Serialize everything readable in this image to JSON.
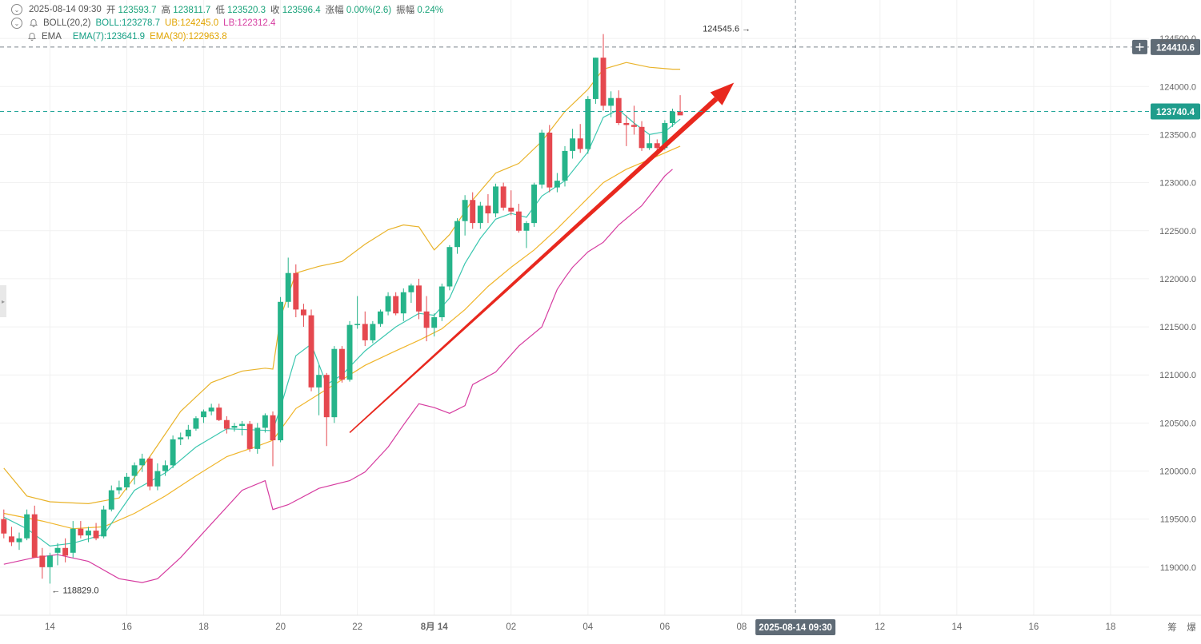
{
  "header": {
    "datetime": "2025-08-14 09:30",
    "open_label": "开",
    "open": "123593.7",
    "high_label": "高",
    "high": "123811.7",
    "low_label": "低",
    "low": "123520.3",
    "close_label": "收",
    "close": "123596.4",
    "change_label": "涨幅",
    "change": "0.00%(2.6)",
    "amp_label": "振幅",
    "amp": "0.24%",
    "boll_label": "BOLL(20,2)",
    "boll": "BOLL:123278.7",
    "ub": "UB:124245.0",
    "lb": "LB:122312.4",
    "ema_label": "EMA",
    "ema7": "EMA(7):123641.9",
    "ema30": "EMA(30):122963.8"
  },
  "colors": {
    "up": "#26b48a",
    "down": "#e5484f",
    "ub": "#e9b32a",
    "lb": "#d63ca0",
    "ema7": "#3cc7b0",
    "ema30": "#f0b52a",
    "arrow": "#e8281e",
    "grid": "#f1f1f1",
    "axis_text": "#666666"
  },
  "chart_data": {
    "type": "candlestick",
    "yticks": [
      124500,
      124000,
      123500,
      123000,
      122500,
      122000,
      121500,
      121000,
      120500,
      120000,
      119500,
      119000
    ],
    "ytick_labels": [
      "124500.0",
      "124000.0",
      "123500.0",
      "123000.0",
      "122500.0",
      "122000.0",
      "121500.0",
      "121000.0",
      "120500.0",
      "120000.0",
      "119500.0",
      "119000.0"
    ],
    "ylim": [
      118500,
      124900
    ],
    "xticks": [
      "14",
      "16",
      "18",
      "20",
      "22",
      "8月 14",
      "02",
      "04",
      "06",
      "08",
      "12",
      "14",
      "16",
      "18"
    ],
    "x_tick_index": [
      5,
      15,
      25,
      35,
      45,
      55,
      65,
      75,
      85,
      95,
      113,
      123,
      133,
      143
    ],
    "x_range": [
      -1.5,
      148
    ],
    "price_tags": [
      {
        "value": 124410.6,
        "label": "124410.6",
        "style": "dark"
      },
      {
        "value": 123740.4,
        "label": "123740.4",
        "style": "teal"
      }
    ],
    "crosshair_index": 102,
    "crosshair_label": "2025-08-14 09:30",
    "right_axis_chars": [
      "筹",
      "爆"
    ],
    "max_annotation": {
      "index": 97,
      "value": 124545.6,
      "label": "124545.6"
    },
    "min_annotation": {
      "index": 5,
      "value": 118829.0,
      "label": "118829.0"
    },
    "trend_arrow": {
      "from": [
        44,
        120400
      ],
      "to": [
        94,
        124040
      ]
    },
    "candles": [
      [
        -1,
        119500,
        119600,
        119300,
        119350
      ],
      [
        0,
        119320,
        119420,
        119220,
        119260
      ],
      [
        1,
        119260,
        119360,
        119180,
        119300
      ],
      [
        2,
        119300,
        119600,
        119280,
        119550
      ],
      [
        3,
        119550,
        119640,
        119100,
        119100
      ],
      [
        4,
        119120,
        119200,
        118880,
        119000
      ],
      [
        5,
        119000,
        119150,
        118829,
        119120
      ],
      [
        6,
        119150,
        119250,
        119020,
        119200
      ],
      [
        7,
        119200,
        119300,
        119050,
        119120
      ],
      [
        8,
        119150,
        119480,
        119100,
        119400
      ],
      [
        9,
        119400,
        119480,
        119300,
        119330
      ],
      [
        10,
        119330,
        119420,
        119260,
        119380
      ],
      [
        11,
        119380,
        119460,
        119280,
        119300
      ],
      [
        12,
        119320,
        119640,
        119300,
        119600
      ],
      [
        13,
        119600,
        119850,
        119580,
        119800
      ],
      [
        14,
        119800,
        119900,
        119760,
        119830
      ],
      [
        15,
        119830,
        119980,
        119800,
        119940
      ],
      [
        16,
        119950,
        120090,
        119860,
        120060
      ],
      [
        17,
        120060,
        120180,
        119990,
        120130
      ],
      [
        18,
        120130,
        120150,
        119800,
        119840
      ],
      [
        19,
        119840,
        120080,
        119800,
        120000
      ],
      [
        20,
        120000,
        120110,
        119950,
        120060
      ],
      [
        21,
        120060,
        120370,
        120030,
        120330
      ],
      [
        22,
        120330,
        120400,
        120270,
        120350
      ],
      [
        23,
        120360,
        120480,
        120330,
        120430
      ],
      [
        24,
        120440,
        120570,
        120420,
        120550
      ],
      [
        25,
        120560,
        120640,
        120500,
        120620
      ],
      [
        26,
        120620,
        120700,
        120580,
        120660
      ],
      [
        27,
        120660,
        120700,
        120520,
        120530
      ],
      [
        28,
        120530,
        120570,
        120390,
        120440
      ],
      [
        29,
        120450,
        120500,
        120410,
        120470
      ],
      [
        30,
        120470,
        120520,
        120370,
        120490
      ],
      [
        31,
        120490,
        120520,
        120200,
        120230
      ],
      [
        32,
        120230,
        120500,
        120180,
        120450
      ],
      [
        33,
        120450,
        120600,
        120400,
        120580
      ],
      [
        34,
        120580,
        120620,
        120050,
        120320
      ],
      [
        35,
        120320,
        121810,
        120300,
        121760
      ],
      [
        36,
        121760,
        122220,
        121700,
        122060
      ],
      [
        37,
        122060,
        122150,
        121600,
        121680
      ],
      [
        38,
        121680,
        121740,
        121500,
        121620
      ],
      [
        39,
        121620,
        121680,
        120830,
        120870
      ],
      [
        40,
        120870,
        121100,
        120580,
        121000
      ],
      [
        41,
        121000,
        121020,
        120260,
        120560
      ],
      [
        42,
        120560,
        121300,
        120500,
        121270
      ],
      [
        43,
        121270,
        121300,
        120920,
        120950
      ],
      [
        44,
        120950,
        121560,
        120930,
        121520
      ],
      [
        45,
        121520,
        121820,
        121480,
        121530
      ],
      [
        46,
        121530,
        121660,
        121300,
        121360
      ],
      [
        47,
        121360,
        121560,
        121330,
        121530
      ],
      [
        48,
        121530,
        121680,
        121500,
        121660
      ],
      [
        49,
        121660,
        121860,
        121620,
        121820
      ],
      [
        50,
        121820,
        121860,
        121620,
        121640
      ],
      [
        51,
        121640,
        121900,
        121560,
        121860
      ],
      [
        52,
        121860,
        121950,
        121750,
        121930
      ],
      [
        53,
        121930,
        122000,
        121580,
        121660
      ],
      [
        54,
        121660,
        121820,
        121350,
        121490
      ],
      [
        55,
        121490,
        121640,
        121400,
        121600
      ],
      [
        56,
        121600,
        121950,
        121560,
        121920
      ],
      [
        57,
        121920,
        122350,
        121880,
        122330
      ],
      [
        58,
        122330,
        122630,
        122260,
        122600
      ],
      [
        59,
        122600,
        122870,
        122450,
        122820
      ],
      [
        60,
        122820,
        122900,
        122520,
        122580
      ],
      [
        61,
        122580,
        122800,
        122520,
        122760
      ],
      [
        62,
        122760,
        122880,
        122580,
        122680
      ],
      [
        63,
        122680,
        122990,
        122640,
        122960
      ],
      [
        64,
        122960,
        123000,
        122710,
        122740
      ],
      [
        65,
        122740,
        122920,
        122660,
        122700
      ],
      [
        66,
        122700,
        122780,
        122480,
        122500
      ],
      [
        67,
        122500,
        122600,
        122320,
        122580
      ],
      [
        68,
        122580,
        123000,
        122540,
        122980
      ],
      [
        69,
        122980,
        123550,
        122940,
        123520
      ],
      [
        70,
        123520,
        123600,
        122900,
        122950
      ],
      [
        71,
        122950,
        123100,
        122900,
        123020
      ],
      [
        72,
        123020,
        123380,
        122960,
        123330
      ],
      [
        73,
        123330,
        123560,
        123250,
        123460
      ],
      [
        74,
        123460,
        123610,
        123310,
        123350
      ],
      [
        75,
        123350,
        123900,
        123300,
        123870
      ],
      [
        76,
        123870,
        124300,
        123820,
        124300
      ],
      [
        77,
        124300,
        124545.6,
        123750,
        123800
      ],
      [
        78,
        123800,
        123950,
        123680,
        123880
      ],
      [
        79,
        123880,
        123960,
        123600,
        123620
      ],
      [
        80,
        123620,
        123700,
        123380,
        123600
      ],
      [
        81,
        123600,
        123800,
        123500,
        123580
      ],
      [
        82,
        123580,
        123640,
        123330,
        123360
      ],
      [
        83,
        123360,
        123500,
        123340,
        123410
      ],
      [
        84,
        123410,
        123450,
        123280,
        123360
      ],
      [
        85,
        123360,
        123650,
        123340,
        123620
      ],
      [
        86,
        123620,
        123770,
        123580,
        123740
      ],
      [
        87,
        123740,
        123910,
        123720,
        123700
      ]
    ],
    "ema7": [
      [
        -1,
        119520
      ],
      [
        2,
        119400
      ],
      [
        5,
        119220
      ],
      [
        8,
        119250
      ],
      [
        12,
        119340
      ],
      [
        16,
        119800
      ],
      [
        20,
        119980
      ],
      [
        24,
        120250
      ],
      [
        28,
        120440
      ],
      [
        31,
        120430
      ],
      [
        34,
        120420
      ],
      [
        35,
        120660
      ],
      [
        37,
        121200
      ],
      [
        39,
        121320
      ],
      [
        41,
        120900
      ],
      [
        43,
        121000
      ],
      [
        46,
        121250
      ],
      [
        50,
        121500
      ],
      [
        53,
        121640
      ],
      [
        55,
        121620
      ],
      [
        57,
        121800
      ],
      [
        59,
        122160
      ],
      [
        61,
        122420
      ],
      [
        63,
        122620
      ],
      [
        65,
        122680
      ],
      [
        67,
        122640
      ],
      [
        69,
        122860
      ],
      [
        72,
        123020
      ],
      [
        75,
        123320
      ],
      [
        77,
        123680
      ],
      [
        79,
        123760
      ],
      [
        81,
        123620
      ],
      [
        83,
        123500
      ],
      [
        85,
        123530
      ],
      [
        87,
        123660
      ]
    ],
    "ema30": [
      [
        -1,
        119560
      ],
      [
        4,
        119480
      ],
      [
        8,
        119400
      ],
      [
        12,
        119420
      ],
      [
        16,
        119560
      ],
      [
        20,
        119740
      ],
      [
        24,
        119950
      ],
      [
        28,
        120150
      ],
      [
        32,
        120260
      ],
      [
        34,
        120320
      ],
      [
        37,
        120650
      ],
      [
        40,
        120800
      ],
      [
        43,
        120950
      ],
      [
        46,
        121100
      ],
      [
        50,
        121250
      ],
      [
        53,
        121360
      ],
      [
        56,
        121480
      ],
      [
        59,
        121680
      ],
      [
        62,
        121920
      ],
      [
        65,
        122120
      ],
      [
        68,
        122300
      ],
      [
        71,
        122520
      ],
      [
        74,
        122760
      ],
      [
        77,
        123000
      ],
      [
        80,
        123140
      ],
      [
        83,
        123240
      ],
      [
        87,
        123380
      ]
    ],
    "ub": [
      [
        -1,
        120030
      ],
      [
        2,
        119740
      ],
      [
        5,
        119680
      ],
      [
        10,
        119660
      ],
      [
        14,
        119720
      ],
      [
        18,
        120150
      ],
      [
        22,
        120620
      ],
      [
        26,
        120920
      ],
      [
        30,
        121040
      ],
      [
        33,
        121070
      ],
      [
        34,
        121060
      ],
      [
        35,
        121600
      ],
      [
        37,
        122060
      ],
      [
        40,
        122130
      ],
      [
        43,
        122180
      ],
      [
        46,
        122360
      ],
      [
        49,
        122510
      ],
      [
        51,
        122560
      ],
      [
        53,
        122540
      ],
      [
        55,
        122300
      ],
      [
        57,
        122460
      ],
      [
        60,
        122820
      ],
      [
        63,
        123100
      ],
      [
        66,
        123200
      ],
      [
        69,
        123430
      ],
      [
        72,
        123740
      ],
      [
        75,
        123970
      ],
      [
        77,
        124180
      ],
      [
        80,
        124250
      ],
      [
        83,
        124200
      ],
      [
        86,
        124180
      ],
      [
        87,
        124180
      ]
    ],
    "lb": [
      [
        -1,
        119030
      ],
      [
        3,
        119100
      ],
      [
        6,
        119130
      ],
      [
        10,
        119060
      ],
      [
        14,
        118880
      ],
      [
        17,
        118840
      ],
      [
        19,
        118880
      ],
      [
        22,
        119100
      ],
      [
        26,
        119450
      ],
      [
        30,
        119800
      ],
      [
        33,
        119900
      ],
      [
        34,
        119600
      ],
      [
        36,
        119650
      ],
      [
        40,
        119820
      ],
      [
        44,
        119900
      ],
      [
        46,
        119990
      ],
      [
        49,
        120250
      ],
      [
        51,
        120480
      ],
      [
        53,
        120700
      ],
      [
        55,
        120660
      ],
      [
        57,
        120600
      ],
      [
        59,
        120680
      ],
      [
        60,
        120900
      ],
      [
        63,
        121030
      ],
      [
        66,
        121300
      ],
      [
        69,
        121500
      ],
      [
        71,
        121890
      ],
      [
        72,
        122010
      ],
      [
        73,
        122120
      ],
      [
        75,
        122280
      ],
      [
        77,
        122380
      ],
      [
        79,
        122560
      ],
      [
        82,
        122760
      ],
      [
        85,
        123070
      ],
      [
        86,
        123140
      ]
    ]
  }
}
